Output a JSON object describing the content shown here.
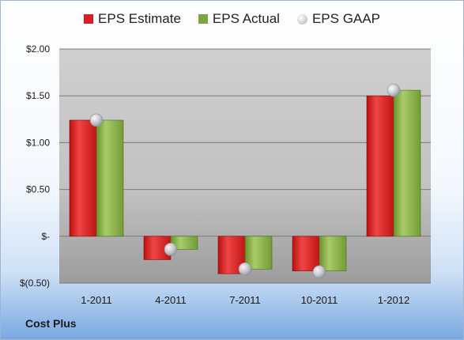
{
  "chart_data": {
    "type": "bar",
    "categories": [
      "1-2011",
      "4-2011",
      "7-2011",
      "10-2011",
      "1-2012"
    ],
    "series": [
      {
        "name": "EPS Estimate",
        "marker": "bar",
        "color": "#d42020",
        "values": [
          1.24,
          -0.25,
          -0.4,
          -0.37,
          1.5
        ]
      },
      {
        "name": "EPS Actual",
        "marker": "bar",
        "color": "#7ea640",
        "values": [
          1.24,
          -0.14,
          -0.35,
          -0.37,
          1.56
        ]
      },
      {
        "name": "EPS GAAP",
        "marker": "dot",
        "color": "#b8bfc8",
        "values": [
          1.24,
          -0.14,
          -0.35,
          -0.38,
          1.56
        ]
      }
    ],
    "ylim": [
      -0.5,
      2.0
    ],
    "yticks": [
      {
        "value": 2.0,
        "label": "$2.00"
      },
      {
        "value": 1.5,
        "label": "$1.50"
      },
      {
        "value": 1.0,
        "label": "$1.00"
      },
      {
        "value": 0.5,
        "label": "$0.50"
      },
      {
        "value": 0.0,
        "label": "$-"
      },
      {
        "value": -0.5,
        "label": "$(0.50)"
      }
    ],
    "grid": true,
    "legend_position": "top"
  },
  "footer": {
    "company": "Cost Plus"
  }
}
